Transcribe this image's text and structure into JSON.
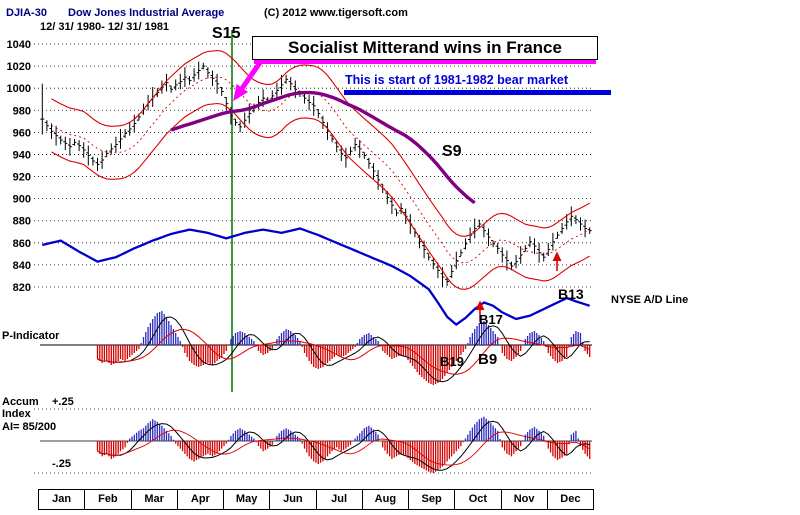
{
  "header": {
    "symbol": "DJIA-30",
    "name": "Dow Jones Industrial Average",
    "date_range": "12/ 31/ 1980- 12/ 31/ 1981",
    "copyright": "(C) 2012 www.tigersoft.com"
  },
  "annotations": {
    "headline": "Socialist Mitterand wins in France",
    "subheadline": "This is start of 1981-1982 bear market",
    "s15": "S15",
    "s9": "S9",
    "b13": "B13",
    "b17": "B17",
    "b19": "B19",
    "b9": "B9",
    "ad_line_label": "NYSE A/D Line",
    "p_indicator_label": "P-Indicator",
    "accum_label": "Accum",
    "index_label": "Index",
    "ai_label": "AI= 85/200",
    "plus25": "+.25",
    "minus25": "-.25"
  },
  "colors": {
    "magenta": "#ff00ff",
    "headline_blue": "#0000dd",
    "title_navy": "#000080",
    "band_red": "#dd0000",
    "hist_red": "#d40000",
    "hist_blue": "#2b2bc0",
    "ad_blue": "#0000cc",
    "trend_purple": "#800080",
    "event_green": "#007700",
    "bar_black": "#000000"
  },
  "chart_data": {
    "type": "ohlc-multi-panel",
    "title": "DJIA-30 Dow Jones Industrial Average 12/31/1980 - 12/31/1981",
    "months": [
      "Jan",
      "Feb",
      "Mar",
      "Apr",
      "May",
      "Jun",
      "Jul",
      "Aug",
      "Sep",
      "Oct",
      "Nov",
      "Dec"
    ],
    "price_panel": {
      "ylim": [
        820,
        1040
      ],
      "ylabel_ticks": [
        1040,
        1020,
        1000,
        980,
        960,
        940,
        920,
        900,
        880,
        860,
        840,
        820
      ],
      "closes": [
        972,
        966,
        961,
        957,
        953,
        950,
        947,
        951,
        948,
        944,
        939,
        934,
        931,
        935,
        941,
        945,
        949,
        954,
        959,
        963,
        968,
        974,
        981,
        987,
        992,
        996,
        1001,
        1005,
        999,
        1003,
        1006,
        1010,
        1007,
        1012,
        1016,
        1020,
        1014,
        1009,
        1004,
        997,
        986,
        975,
        969,
        965,
        971,
        977,
        982,
        987,
        991,
        989,
        993,
        998,
        1003,
        1008,
        1004,
        999,
        995,
        991,
        987,
        984,
        977,
        969,
        961,
        954,
        947,
        941,
        937,
        943,
        949,
        945,
        939,
        932,
        925,
        917,
        909,
        901,
        894,
        887,
        891,
        884,
        877,
        869,
        861,
        854,
        847,
        841,
        835,
        829,
        825,
        834,
        844,
        851,
        859,
        867,
        873,
        877,
        871,
        865,
        859,
        855,
        849,
        844,
        839,
        843,
        849,
        855,
        861,
        857,
        851,
        847,
        854,
        861,
        867,
        873,
        879,
        884,
        881,
        877,
        873,
        871
      ],
      "bands": {
        "type": "sma-envelope",
        "period": 10,
        "offset": 24
      },
      "trend_line": {
        "type": "sma",
        "period": 35,
        "label": "S9",
        "range_bars": [
          28,
          94
        ]
      }
    },
    "ad_line_panel": {
      "name": "NYSE A/D Line",
      "end_label": "B13",
      "anchors": [
        [
          0,
          858
        ],
        [
          4,
          862
        ],
        [
          8,
          852
        ],
        [
          12,
          843
        ],
        [
          16,
          847
        ],
        [
          20,
          855
        ],
        [
          24,
          862
        ],
        [
          28,
          868
        ],
        [
          32,
          872
        ],
        [
          36,
          869
        ],
        [
          40,
          864
        ],
        [
          44,
          869
        ],
        [
          48,
          872
        ],
        [
          52,
          869
        ],
        [
          56,
          873
        ],
        [
          60,
          867
        ],
        [
          64,
          860
        ],
        [
          68,
          853
        ],
        [
          72,
          846
        ],
        [
          76,
          839
        ],
        [
          80,
          830
        ],
        [
          84,
          818
        ],
        [
          86,
          806
        ],
        [
          88,
          793
        ],
        [
          90,
          786
        ],
        [
          92,
          792
        ],
        [
          94,
          800
        ],
        [
          96,
          806
        ],
        [
          98,
          803
        ],
        [
          100,
          797
        ],
        [
          103,
          791
        ],
        [
          106,
          794
        ],
        [
          109,
          800
        ],
        [
          112,
          806
        ],
        [
          114,
          810
        ],
        [
          116,
          807
        ],
        [
          119,
          803
        ]
      ]
    },
    "p_indicator": {
      "name": "P-Indicator",
      "start_bar": 12,
      "values": [
        0,
        0,
        0,
        0,
        0,
        0,
        0,
        0,
        0,
        0,
        0,
        0,
        -0.35,
        -0.45,
        -0.4,
        -0.5,
        -0.45,
        -0.35,
        -0.4,
        -0.3,
        -0.2,
        -0.1,
        0.2,
        0.45,
        0.65,
        0.8,
        0.85,
        0.7,
        0.5,
        0.3,
        0.1,
        -0.2,
        -0.4,
        -0.5,
        -0.55,
        -0.5,
        -0.45,
        -0.5,
        -0.4,
        -0.3,
        -0.15,
        0.15,
        0.3,
        0.35,
        0.3,
        0.2,
        0.1,
        -0.15,
        -0.25,
        -0.2,
        -0.1,
        0.15,
        0.3,
        0.4,
        0.35,
        0.25,
        0.1,
        -0.2,
        -0.4,
        -0.55,
        -0.6,
        -0.55,
        -0.45,
        -0.35,
        -0.25,
        -0.3,
        -0.25,
        -0.15,
        -0.05,
        0.15,
        0.25,
        0.3,
        0.2,
        0.1,
        -0.15,
        -0.25,
        -0.35,
        -0.3,
        -0.25,
        -0.3,
        -0.45,
        -0.6,
        -0.75,
        -0.85,
        -0.95,
        -1.0,
        -0.95,
        -0.85,
        -0.7,
        -0.55,
        -0.4,
        -0.25,
        -0.1,
        0.2,
        0.4,
        0.55,
        0.6,
        0.5,
        0.35,
        0.2,
        -0.2,
        -0.35,
        -0.4,
        -0.3,
        -0.15,
        0.15,
        0.3,
        0.35,
        0.25,
        0.1,
        -0.2,
        -0.35,
        -0.45,
        -0.4,
        -0.3,
        0.2,
        0.35,
        0.3,
        -0.15,
        -0.3
      ]
    },
    "accum_index": {
      "name": "Accumulation Index",
      "ai_value": "AI= 85/200",
      "scale_labels": [
        "+.25",
        "-.25"
      ],
      "scale_limits": [
        0.25,
        -0.25
      ],
      "start_bar": 12,
      "values": [
        0,
        0,
        0,
        0,
        0,
        0,
        0,
        0,
        0,
        0,
        0,
        0,
        -0.08,
        -0.12,
        -0.1,
        -0.14,
        -0.12,
        -0.08,
        -0.05,
        0.02,
        0.05,
        0.08,
        0.1,
        0.14,
        0.17,
        0.15,
        0.12,
        0.08,
        0.04,
        -0.02,
        -0.06,
        -0.1,
        -0.14,
        -0.16,
        -0.14,
        -0.12,
        -0.1,
        -0.12,
        -0.1,
        -0.06,
        -0.02,
        0.04,
        0.08,
        0.1,
        0.08,
        0.05,
        0.02,
        -0.04,
        -0.08,
        -0.06,
        -0.03,
        0.04,
        0.08,
        0.1,
        0.08,
        0.05,
        0.02,
        -0.06,
        -0.12,
        -0.16,
        -0.18,
        -0.16,
        -0.12,
        -0.08,
        -0.05,
        -0.08,
        -0.06,
        -0.03,
        0.02,
        0.06,
        0.1,
        0.12,
        0.09,
        0.05,
        -0.05,
        -0.1,
        -0.14,
        -0.12,
        -0.1,
        -0.12,
        -0.15,
        -0.18,
        -0.2,
        -0.22,
        -0.24,
        -0.25,
        -0.23,
        -0.2,
        -0.16,
        -0.12,
        -0.08,
        -0.04,
        0.02,
        0.08,
        0.13,
        0.17,
        0.19,
        0.16,
        0.12,
        0.08,
        -0.05,
        -0.1,
        -0.12,
        -0.08,
        -0.04,
        0.05,
        0.09,
        0.11,
        0.08,
        0.04,
        -0.06,
        -0.12,
        -0.15,
        -0.13,
        -0.1,
        0.05,
        0.08,
        -0.04,
        -0.1,
        -0.14
      ]
    }
  }
}
